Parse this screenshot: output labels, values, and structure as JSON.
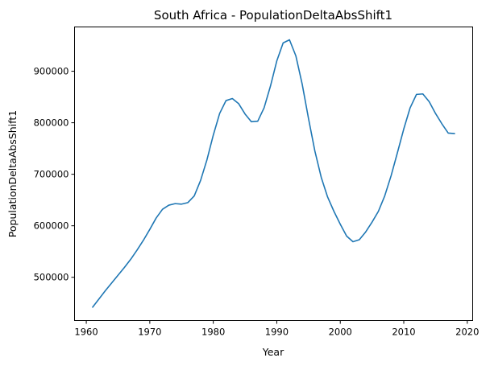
{
  "chart_data": {
    "type": "line",
    "title": "South Africa - PopulationDeltaAbsShift1",
    "xlabel": "Year",
    "ylabel": "PopulationDeltaAbsShift1",
    "xlim": [
      1958.15,
      2020.85
    ],
    "ylim": [
      416000,
      986000
    ],
    "xticks": [
      1960,
      1970,
      1980,
      1990,
      2000,
      2010,
      2020
    ],
    "xtick_labels": [
      "1960",
      "1970",
      "1980",
      "1990",
      "2000",
      "2010",
      "2020"
    ],
    "yticks": [
      500000,
      600000,
      700000,
      800000,
      900000
    ],
    "ytick_labels": [
      "500000",
      "600000",
      "700000",
      "800000",
      "900000"
    ],
    "grid": false,
    "line_color": "#1f77b4",
    "series": [
      {
        "x": [
          1961,
          1962,
          1963,
          1964,
          1965,
          1966,
          1967,
          1968,
          1969,
          1970,
          1971,
          1972,
          1973,
          1974,
          1975,
          1976,
          1977,
          1978,
          1979,
          1980,
          1981,
          1982,
          1983,
          1984,
          1985,
          1986,
          1987,
          1988,
          1989,
          1990,
          1991,
          1992,
          1993,
          1994,
          1995,
          1996,
          1997,
          1998,
          1999,
          2000,
          2001,
          2002,
          2003,
          2004,
          2005,
          2006,
          2007,
          2008,
          2009,
          2010,
          2011,
          2012,
          2013,
          2014,
          2015,
          2016,
          2017,
          2018
        ],
        "values": [
          442000,
          458000,
          474000,
          489000,
          504000,
          519000,
          535000,
          553000,
          572000,
          593000,
          615000,
          632000,
          640000,
          643000,
          642000,
          645000,
          658000,
          688000,
          728000,
          776000,
          818000,
          843000,
          847000,
          837000,
          817000,
          802000,
          803000,
          829000,
          871000,
          920000,
          955000,
          961000,
          930000,
          875000,
          808000,
          745000,
          694000,
          656000,
          628000,
          603000,
          580000,
          569000,
          573000,
          588000,
          607000,
          628000,
          658000,
          697000,
          742000,
          788000,
          829000,
          855000,
          856000,
          841000,
          818000,
          798000,
          780000,
          779000
        ]
      }
    ]
  }
}
